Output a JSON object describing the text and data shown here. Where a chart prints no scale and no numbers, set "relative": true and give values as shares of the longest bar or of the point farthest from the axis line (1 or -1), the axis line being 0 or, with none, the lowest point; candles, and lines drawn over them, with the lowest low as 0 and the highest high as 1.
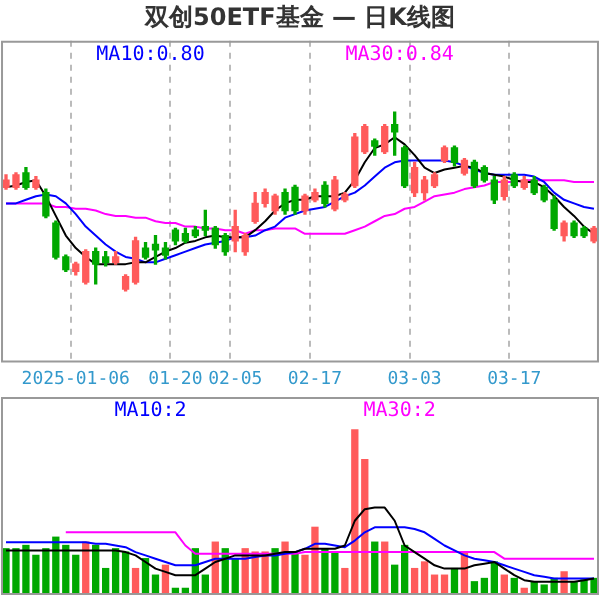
{
  "chart_data": [
    {
      "type": "candlestick",
      "title": "双创50ETF基金 — 日K线图",
      "relative": true,
      "grid": "x",
      "legend": "top",
      "marker": "none",
      "categories": [
        null,
        null,
        null,
        null,
        null,
        null,
        null,
        "2025-01-06",
        null,
        null,
        null,
        null,
        null,
        null,
        null,
        null,
        null,
        "01-20",
        null,
        null,
        null,
        null,
        null,
        "02-05",
        null,
        null,
        null,
        null,
        null,
        null,
        null,
        "02-17",
        null,
        null,
        null,
        null,
        null,
        null,
        null,
        null,
        null,
        "03-03",
        null,
        null,
        null,
        null,
        null,
        null,
        null,
        null,
        null,
        "03-17",
        null,
        null,
        null,
        null,
        null,
        null,
        null,
        null
      ],
      "ohlc": [
        [
          0.58,
          0.65,
          0.57,
          0.62
        ],
        [
          0.58,
          0.66,
          0.57,
          0.65
        ],
        [
          0.66,
          0.69,
          0.57,
          0.58
        ],
        [
          0.58,
          0.64,
          0.57,
          0.62
        ],
        [
          0.55,
          0.57,
          0.41,
          0.42
        ],
        [
          0.38,
          0.39,
          0.18,
          0.19
        ],
        [
          0.19,
          0.2,
          0.11,
          0.12
        ],
        [
          0.11,
          0.16,
          0.09,
          0.15
        ],
        [
          0.05,
          0.23,
          0.04,
          0.22
        ],
        [
          0.22,
          0.24,
          0.04,
          0.15
        ],
        [
          0.19,
          0.22,
          0.14,
          0.16
        ],
        [
          0.16,
          0.22,
          0.15,
          0.19
        ],
        [
          0.01,
          0.09,
          0,
          0.08
        ],
        [
          0.05,
          0.3,
          0.04,
          0.28
        ],
        [
          0.24,
          0.27,
          0.18,
          0.19
        ],
        [
          0.26,
          0.31,
          0.15,
          0.23
        ],
        [
          0.24,
          0.27,
          0.18,
          0.2
        ],
        [
          0.34,
          0.35,
          0.26,
          0.28
        ],
        [
          0.32,
          0.35,
          0.27,
          0.28
        ],
        [
          0.34,
          0.36,
          0.3,
          0.31
        ],
        [
          0.36,
          0.45,
          0.31,
          0.34
        ],
        [
          0.35,
          0.36,
          0.24,
          0.26
        ],
        [
          0.31,
          0.32,
          0.2,
          0.22
        ],
        [
          0.28,
          0.45,
          0.22,
          0.36
        ],
        [
          0.22,
          0.32,
          0.2,
          0.31
        ],
        [
          0.39,
          0.55,
          0.38,
          0.49
        ],
        [
          0.49,
          0.57,
          0.47,
          0.55
        ],
        [
          0.45,
          0.54,
          0.43,
          0.53
        ],
        [
          0.55,
          0.57,
          0.43,
          0.45
        ],
        [
          0.58,
          0.59,
          0.43,
          0.45
        ],
        [
          0.45,
          0.54,
          0.43,
          0.53
        ],
        [
          0.51,
          0.57,
          0.5,
          0.55
        ],
        [
          0.59,
          0.61,
          0.47,
          0.49
        ],
        [
          0.46,
          0.64,
          0.45,
          0.62
        ],
        [
          0.51,
          0.55,
          0.5,
          0.54
        ],
        [
          0.59,
          0.88,
          0.58,
          0.86
        ],
        [
          0.78,
          0.93,
          0.77,
          0.92
        ],
        [
          0.84,
          0.85,
          0.76,
          0.81
        ],
        [
          0.78,
          0.93,
          0.77,
          0.92
        ],
        [
          0.93,
          1,
          0.76,
          0.89
        ],
        [
          0.8,
          0.81,
          0.58,
          0.59
        ],
        [
          0.55,
          0.72,
          0.53,
          0.69
        ],
        [
          0.55,
          0.64,
          0.51,
          0.62
        ],
        [
          0.59,
          0.66,
          0.58,
          0.65
        ],
        [
          0.73,
          0.81,
          0.72,
          0.8
        ],
        [
          0.8,
          0.81,
          0.7,
          0.72
        ],
        [
          0.66,
          0.74,
          0.65,
          0.73
        ],
        [
          0.72,
          0.73,
          0.58,
          0.59
        ],
        [
          0.69,
          0.7,
          0.61,
          0.62
        ],
        [
          0.62,
          0.64,
          0.49,
          0.51
        ],
        [
          0.53,
          0.64,
          0.51,
          0.62
        ],
        [
          0.65,
          0.66,
          0.58,
          0.59
        ],
        [
          0.58,
          0.64,
          0.57,
          0.62
        ],
        [
          0.62,
          0.64,
          0.54,
          0.55
        ],
        [
          0.58,
          0.59,
          0.5,
          0.51
        ],
        [
          0.51,
          0.53,
          0.34,
          0.35
        ],
        [
          0.31,
          0.39,
          0.28,
          0.38
        ],
        [
          0.38,
          0.39,
          0.3,
          0.31
        ],
        [
          0.35,
          0.36,
          0.3,
          0.31
        ],
        [
          0.28,
          0.36,
          0.27,
          0.35
        ]
      ],
      "series": [
        {
          "type": "line",
          "color": "#000000",
          "values": [
            0.58,
            0.59,
            0.61,
            0.62,
            0.53,
            0.42,
            0.31,
            0.24,
            0.19,
            0.15,
            0.15,
            0.15,
            0.15,
            0.16,
            0.16,
            0.19,
            0.22,
            0.24,
            0.27,
            0.28,
            0.3,
            0.31,
            0.3,
            0.3,
            0.3,
            0.34,
            0.39,
            0.45,
            0.49,
            0.51,
            0.51,
            0.53,
            0.53,
            0.53,
            0.55,
            0.62,
            0.72,
            0.8,
            0.82,
            0.86,
            0.82,
            0.76,
            0.69,
            0.66,
            0.68,
            0.69,
            0.7,
            0.69,
            0.66,
            0.65,
            0.64,
            0.62,
            0.61,
            0.61,
            0.58,
            0.53,
            0.47,
            0.42,
            0.36,
            0.32
          ]
        },
        {
          "type": "line",
          "name": "MA10:0.80",
          "color": "#0000ff",
          "values": [
            0.49,
            0.49,
            0.51,
            0.53,
            0.54,
            0.53,
            0.49,
            0.43,
            0.36,
            0.31,
            0.26,
            0.22,
            0.19,
            0.18,
            0.16,
            0.16,
            0.18,
            0.2,
            0.22,
            0.24,
            0.26,
            0.27,
            0.28,
            0.3,
            0.3,
            0.31,
            0.34,
            0.36,
            0.41,
            0.43,
            0.45,
            0.46,
            0.47,
            0.5,
            0.53,
            0.55,
            0.59,
            0.64,
            0.69,
            0.72,
            0.73,
            0.73,
            0.73,
            0.73,
            0.73,
            0.72,
            0.7,
            0.68,
            0.66,
            0.65,
            0.65,
            0.65,
            0.65,
            0.64,
            0.61,
            0.55,
            0.51,
            0.49,
            0.47,
            0.46
          ]
        },
        {
          "type": "line",
          "name": "MA30:0.84",
          "color": "#ff00ff",
          "values": [
            0.49,
            0.49,
            0.49,
            0.49,
            0.49,
            0.47,
            0.47,
            0.46,
            0.46,
            0.45,
            0.43,
            0.42,
            0.42,
            0.41,
            0.41,
            0.39,
            0.38,
            0.38,
            0.36,
            0.36,
            0.35,
            0.35,
            0.34,
            0.34,
            0.32,
            0.34,
            0.34,
            0.35,
            0.35,
            0.35,
            0.32,
            0.32,
            0.32,
            0.32,
            0.32,
            0.34,
            0.36,
            0.39,
            0.42,
            0.43,
            0.46,
            0.47,
            0.5,
            0.53,
            0.54,
            0.55,
            0.57,
            0.58,
            0.59,
            0.61,
            0.61,
            0.61,
            0.62,
            0.62,
            0.62,
            0.62,
            0.62,
            0.61,
            0.61,
            0.61
          ]
        }
      ]
    },
    {
      "type": "bar",
      "relative": true,
      "tick_labels": false,
      "legend": "top",
      "marker": "none",
      "categories": [
        null,
        null,
        null,
        null,
        null,
        null,
        null,
        null,
        null,
        null,
        null,
        null,
        null,
        null,
        null,
        null,
        null,
        null,
        null,
        null,
        null,
        null,
        null,
        null,
        null,
        null,
        null,
        null,
        null,
        null,
        null,
        null,
        null,
        null,
        null,
        null,
        null,
        null,
        null,
        null,
        null,
        null,
        null,
        null,
        null,
        null,
        null,
        null,
        null,
        null,
        null,
        null,
        null,
        null,
        null,
        null,
        null,
        null,
        null,
        null
      ],
      "series": [
        {
          "type": "bar",
          "values": [
            0.28,
            0.28,
            0.3,
            0.24,
            0.28,
            0.35,
            0.3,
            0.24,
            0.32,
            0.3,
            0.16,
            0.28,
            0.26,
            0.16,
            0.22,
            0.12,
            0.18,
            0.04,
            0.04,
            0.28,
            0.12,
            0.32,
            0.28,
            0.22,
            0.28,
            0.26,
            0.26,
            0.28,
            0.32,
            0.26,
            0.24,
            0.41,
            0.28,
            0.26,
            0.16,
            1,
            0.82,
            0.32,
            0.32,
            0.18,
            0.3,
            0.16,
            0.2,
            0.12,
            0.12,
            0.16,
            0.26,
            0.08,
            0.1,
            0.2,
            0.12,
            0.1,
            0.04,
            0.08,
            0.06,
            0.1,
            0.14,
            0.08,
            0.09,
            0.1
          ],
          "colors": [
            "#00a800",
            "#00a800",
            "#00a800",
            "#00a800",
            "#00a800",
            "#00a800",
            "#00a800",
            "#00a800",
            "#ff5b5b",
            "#00a800",
            "#00a800",
            "#00a800",
            "#00a800",
            "#ff5b5b",
            "#00a800",
            "#00a800",
            "#ff5b5b",
            "#00a800",
            "#00a800",
            "#00a800",
            "#00a800",
            "#ff5b5b",
            "#00a800",
            "#00a800",
            "#ff5b5b",
            "#ff5b5b",
            "#ff5b5b",
            "#00a800",
            "#ff5b5b",
            "#00a800",
            "#ff5b5b",
            "#ff5b5b",
            "#00a800",
            "#00a800",
            "#ff5b5b",
            "#ff5b5b",
            "#ff5b5b",
            "#00a800",
            "#ff5b5b",
            "#00a800",
            "#00a800",
            "#ff5b5b",
            "#ff5b5b",
            "#ff5b5b",
            "#ff5b5b",
            "#00a800",
            "#ff5b5b",
            "#00a800",
            "#00a800",
            "#00a800",
            "#ff5b5b",
            "#00a800",
            "#ff5b5b",
            "#00a800",
            "#00a800",
            "#00a800",
            "#ff5b5b",
            "#00a800",
            "#00a800",
            "#00a800"
          ]
        },
        {
          "type": "line",
          "color": "#000000",
          "values": [
            0.27,
            0.27,
            0.27,
            0.27,
            0.27,
            0.27,
            0.27,
            0.27,
            0.27,
            0.27,
            0.27,
            0.27,
            0.26,
            0.24,
            0.2,
            0.16,
            0.14,
            0.12,
            0.12,
            0.12,
            0.16,
            0.2,
            0.22,
            0.24,
            0.24,
            0.24,
            0.24,
            0.25,
            0.26,
            0.26,
            0.28,
            0.28,
            0.28,
            0.28,
            0.3,
            0.45,
            0.52,
            0.53,
            0.53,
            0.45,
            0.3,
            0.26,
            0.22,
            0.18,
            0.16,
            0.16,
            0.16,
            0.18,
            0.19,
            0.2,
            0.16,
            0.12,
            0.09,
            0.08,
            0.08,
            0.08,
            0.08,
            0.08,
            0.09,
            0.1
          ]
        },
        {
          "type": "line",
          "name": "MA10:2",
          "color": "#0000ff",
          "values": [
            0.32,
            0.32,
            0.32,
            0.32,
            0.32,
            0.32,
            0.32,
            0.32,
            0.32,
            0.31,
            0.31,
            0.3,
            0.29,
            0.26,
            0.24,
            0.22,
            0.2,
            0.18,
            0.18,
            0.18,
            0.2,
            0.22,
            0.22,
            0.22,
            0.22,
            0.23,
            0.24,
            0.24,
            0.25,
            0.26,
            0.28,
            0.31,
            0.31,
            0.3,
            0.29,
            0.33,
            0.38,
            0.41,
            0.41,
            0.41,
            0.41,
            0.4,
            0.38,
            0.34,
            0.3,
            0.27,
            0.24,
            0.22,
            0.21,
            0.2,
            0.18,
            0.16,
            0.14,
            0.12,
            0.11,
            0.1,
            0.1,
            0.1,
            0.1,
            0.1
          ]
        },
        {
          "type": "line",
          "name": "MA30:2",
          "color": "#ff00ff",
          "values": [
            null,
            null,
            null,
            null,
            null,
            null,
            0.38,
            0.38,
            0.38,
            0.38,
            0.38,
            0.38,
            0.38,
            0.38,
            0.38,
            0.38,
            0.38,
            0.38,
            0.3,
            0.25,
            0.25,
            0.25,
            0.25,
            0.25,
            0.25,
            0.25,
            0.25,
            0.25,
            0.25,
            0.25,
            0.26,
            0.26,
            0.26,
            0.26,
            0.26,
            0.26,
            0.26,
            0.26,
            0.26,
            0.26,
            0.26,
            0.26,
            0.26,
            0.26,
            0.26,
            0.26,
            0.26,
            0.26,
            0.26,
            0.26,
            0.22,
            0.22,
            0.22,
            0.22,
            0.22,
            0.22,
            0.22,
            0.22,
            0.22,
            0.22
          ]
        }
      ]
    }
  ]
}
